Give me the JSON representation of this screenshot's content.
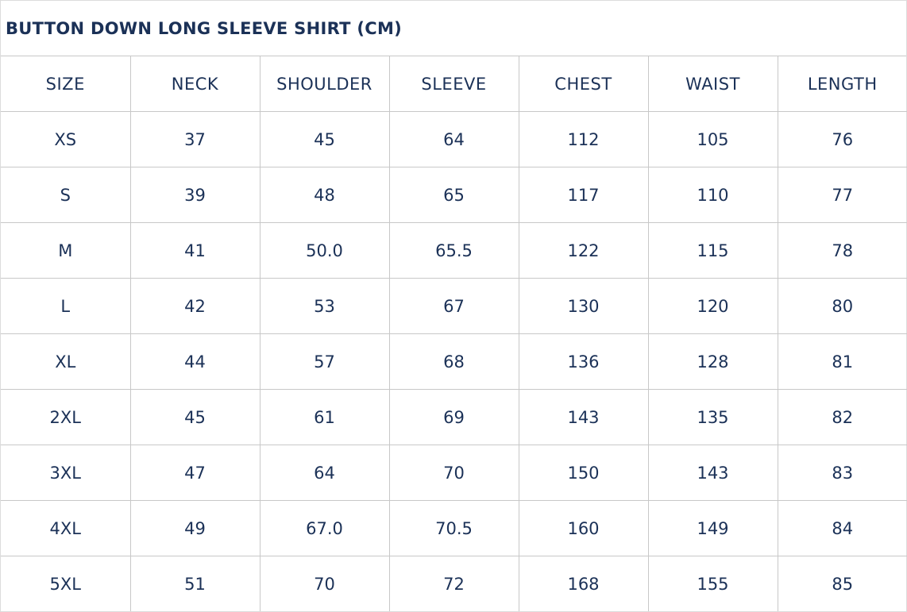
{
  "title": "BUTTON DOWN LONG SLEEVE SHIRT (CM)",
  "columns": [
    "SIZE",
    "NECK",
    "SHOULDER",
    "SLEEVE",
    "CHEST",
    "WAIST",
    "LENGTH"
  ],
  "rows": [
    [
      "XS",
      "37",
      "45",
      "64",
      "112",
      "105",
      "76"
    ],
    [
      "S",
      "39",
      "48",
      "65",
      "117",
      "110",
      "77"
    ],
    [
      "M",
      "41",
      "50.0",
      "65.5",
      "122",
      "115",
      "78"
    ],
    [
      "L",
      "42",
      "53",
      "67",
      "130",
      "120",
      "80"
    ],
    [
      "XL",
      "44",
      "57",
      "68",
      "136",
      "128",
      "81"
    ],
    [
      "2XL",
      "45",
      "61",
      "69",
      "143",
      "135",
      "82"
    ],
    [
      "3XL",
      "47",
      "64",
      "70",
      "150",
      "143",
      "83"
    ],
    [
      "4XL",
      "49",
      "67.0",
      "70.5",
      "160",
      "149",
      "84"
    ],
    [
      "5XL",
      "51",
      "70",
      "72",
      "168",
      "155",
      "85"
    ]
  ],
  "colors": {
    "text": "#1b3157",
    "border": "#c8c8c8"
  }
}
